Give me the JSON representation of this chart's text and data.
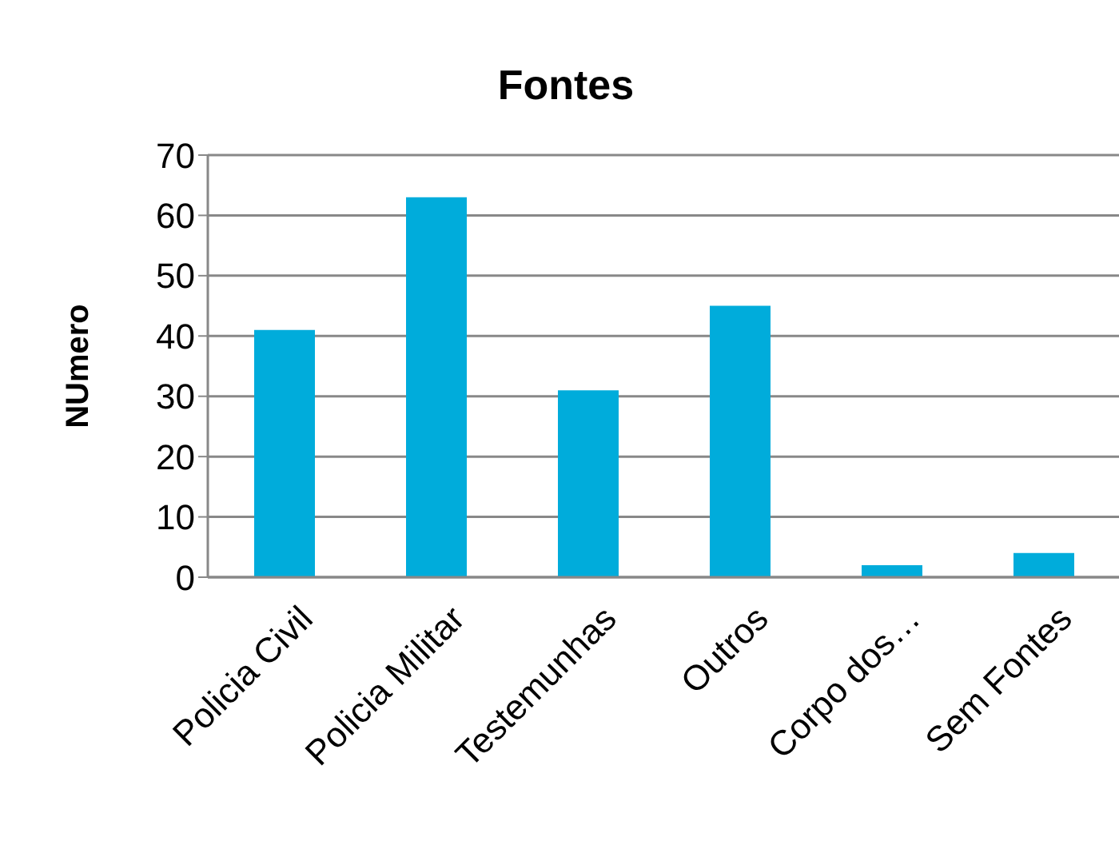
{
  "chart_data": {
    "type": "bar",
    "title": "Fontes",
    "ylabel": "NUmero",
    "categories": [
      "Policia Civil",
      "Policia Militar",
      "Testemunhas",
      "Outros",
      "Corpo dos…",
      "Sem Fontes"
    ],
    "values": [
      41,
      63,
      31,
      45,
      2,
      4
    ],
    "color": "#00acdb",
    "ylim": [
      0,
      70
    ],
    "yticks": [
      0,
      10,
      20,
      30,
      40,
      50,
      60,
      70
    ],
    "grid": "y"
  }
}
